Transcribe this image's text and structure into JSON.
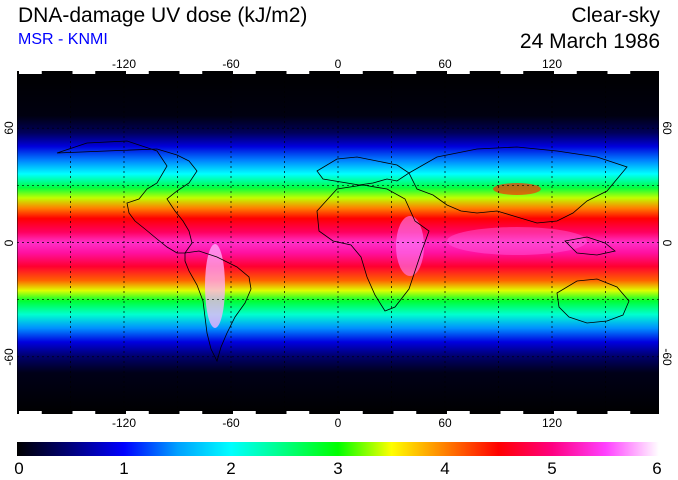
{
  "header": {
    "title": "DNA-damage UV dose (kJ/m2)",
    "subtitle": "MSR - KNMI",
    "condition": "Clear-sky",
    "date": "24 March 1986"
  },
  "map": {
    "lon_range": [
      -180,
      180
    ],
    "lat_range": [
      -90,
      90
    ],
    "lon_ticks": [
      "-120",
      "-60",
      "0",
      "60",
      "120"
    ],
    "lon_tick_values": [
      -120,
      -60,
      0,
      60,
      120
    ],
    "lat_ticks": [
      "60",
      "0",
      "-60"
    ],
    "lat_tick_values": [
      60,
      0,
      -60
    ],
    "grid_lon_step": 30,
    "grid_lat_step": 30,
    "grid": "dashed",
    "background_color": "#000000",
    "coastline_color": "#000000"
  },
  "colorbar": {
    "min": 0,
    "max": 6,
    "labels": [
      "0",
      "1",
      "2",
      "3",
      "4",
      "5",
      "6"
    ],
    "stops": [
      {
        "value": 0.0,
        "color": "#000000"
      },
      {
        "value": 0.5,
        "color": "#00007a"
      },
      {
        "value": 1.0,
        "color": "#0000ff"
      },
      {
        "value": 1.5,
        "color": "#00a0ff"
      },
      {
        "value": 2.0,
        "color": "#00ffff"
      },
      {
        "value": 2.5,
        "color": "#00ff80"
      },
      {
        "value": 3.0,
        "color": "#00ff00"
      },
      {
        "value": 3.5,
        "color": "#ffff00"
      },
      {
        "value": 4.0,
        "color": "#ff8000"
      },
      {
        "value": 4.5,
        "color": "#ff0000"
      },
      {
        "value": 5.0,
        "color": "#ff0080"
      },
      {
        "value": 5.5,
        "color": "#ff40ff"
      },
      {
        "value": 6.0,
        "color": "#ffffff"
      }
    ]
  }
}
